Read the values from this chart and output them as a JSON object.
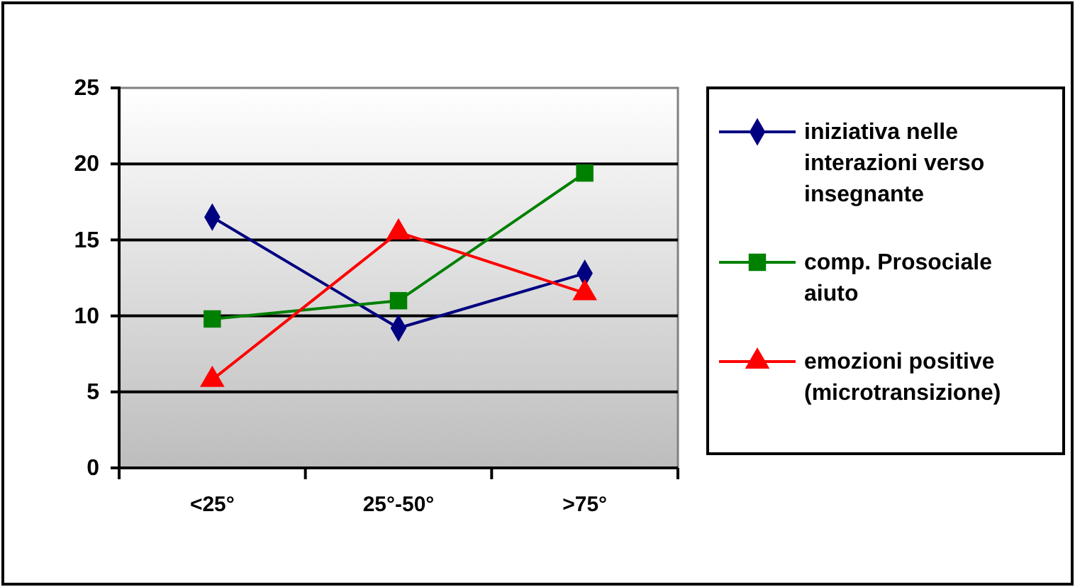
{
  "chart_data": {
    "type": "line",
    "categories": [
      "<25°",
      "25°-50°",
      ">75°"
    ],
    "series": [
      {
        "name": "iniziativa nelle interazioni verso insegnante",
        "color": "#000080",
        "marker": "diamond",
        "values": [
          16.5,
          9.2,
          12.8
        ]
      },
      {
        "name": "comp. Prosociale aiuto",
        "color": "#008000",
        "marker": "square",
        "values": [
          9.8,
          11,
          19.4
        ]
      },
      {
        "name": "emozioni positive (microtransizione)",
        "color": "#ff0000",
        "marker": "triangle",
        "values": [
          5.8,
          15.5,
          11.5
        ]
      }
    ],
    "ylim": [
      0,
      25
    ],
    "yticks": [
      0,
      5,
      10,
      15,
      20,
      25
    ],
    "grid": "y",
    "legend": "right"
  }
}
